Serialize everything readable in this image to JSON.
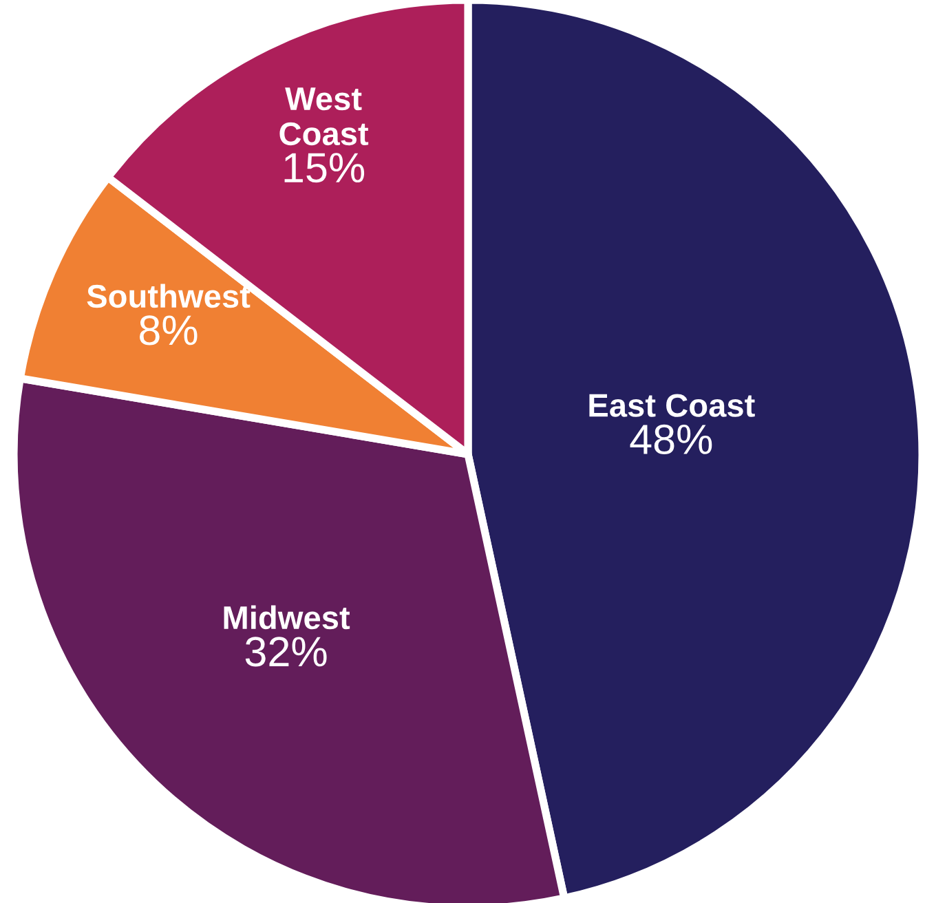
{
  "chart_data": {
    "type": "pie",
    "categories": [
      "East Coast",
      "Midwest",
      "Southwest",
      "West Coast"
    ],
    "values": [
      48,
      32,
      8,
      15
    ],
    "value_labels": [
      "48%",
      "32%",
      "8%",
      "15%"
    ],
    "colors": [
      "#241f5e",
      "#631d5a",
      "#f08033",
      "#ad1f5a"
    ],
    "legend": false
  }
}
